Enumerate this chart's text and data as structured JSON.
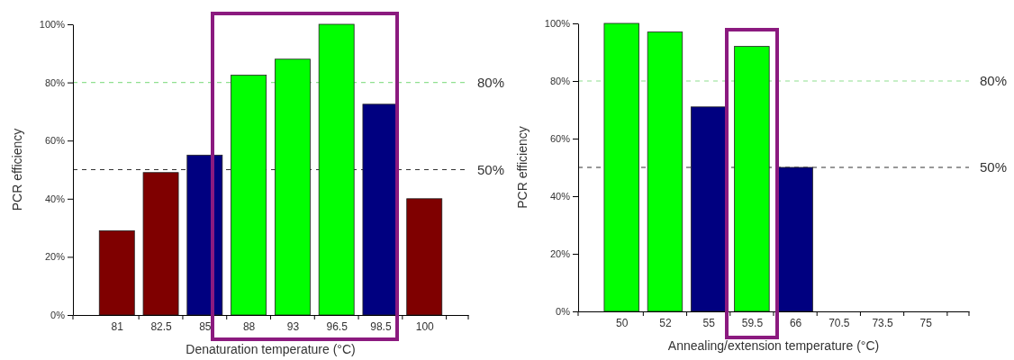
{
  "chart_data": [
    {
      "type": "bar",
      "xlabel": "Denaturation temperature (°C)",
      "ylabel": "PCR efficiency",
      "categories": [
        "81",
        "82.5",
        "85",
        "88",
        "93",
        "96.5",
        "98.5",
        "100"
      ],
      "values": [
        29,
        49,
        55,
        82.5,
        88,
        100,
        72.5,
        40
      ],
      "colors": [
        "#7f0000",
        "#7f0000",
        "#000080",
        "#00ff00",
        "#00ff00",
        "#00ff00",
        "#000080",
        "#7f0000"
      ],
      "ylim": [
        0,
        100
      ],
      "yticks": [
        {
          "value": 0,
          "label": "0%"
        },
        {
          "value": 20,
          "label": "20%"
        },
        {
          "value": 40,
          "label": "40%"
        },
        {
          "value": 60,
          "label": "60%"
        },
        {
          "value": 80,
          "label": "80%"
        },
        {
          "value": 100,
          "label": "100%"
        }
      ],
      "ref_lines": [
        {
          "axis": "y",
          "value": 80,
          "label": "80%",
          "color": "#90e090",
          "line_style": "dashed"
        },
        {
          "axis": "y",
          "value": 50,
          "label": "50%",
          "color": "#333333",
          "line_style": "dashed"
        }
      ]
    },
    {
      "type": "bar",
      "xlabel": "Annealing/extension temperature (°C)",
      "ylabel": "PCR efficiency",
      "categories": [
        "50",
        "52",
        "55",
        "59.5",
        "66",
        "70.5",
        "73.5",
        "75"
      ],
      "values": [
        100,
        97,
        71,
        92,
        50,
        null,
        null,
        null
      ],
      "colors": [
        "#00ff00",
        "#00ff00",
        "#000080",
        "#00ff00",
        "#000080",
        null,
        null,
        null
      ],
      "ylim": [
        0,
        100
      ],
      "yticks": [
        {
          "value": 0,
          "label": "0%"
        },
        {
          "value": 20,
          "label": "20%"
        },
        {
          "value": 40,
          "label": "40%"
        },
        {
          "value": 60,
          "label": "60%"
        },
        {
          "value": 80,
          "label": "80%"
        },
        {
          "value": 100,
          "label": "100%"
        }
      ],
      "ref_lines": [
        {
          "axis": "y",
          "value": 80,
          "label": "80%",
          "color": "#90e090",
          "line_style": "dashed"
        },
        {
          "axis": "y",
          "value": 50,
          "label": "50%",
          "color": "#333333",
          "line_style": "dashed"
        }
      ]
    }
  ]
}
